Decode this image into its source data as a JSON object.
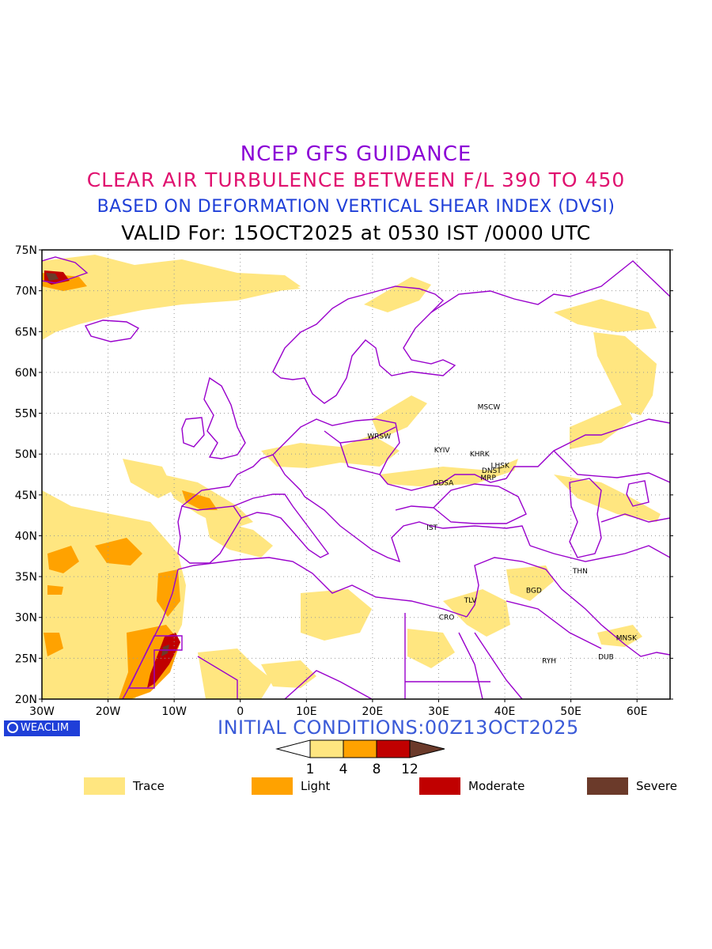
{
  "titles": {
    "line1": "NCEP GFS GUIDANCE",
    "line2": "CLEAR AIR TURBULENCE BETWEEN F/L 390 TO 450",
    "line3": "BASED ON DEFORMATION VERTICAL SHEAR INDEX (DVSI)",
    "line4": "VALID For: 15OCT2025 at 0530 IST /0000 UTC"
  },
  "axes": {
    "lat_labels": [
      "75N",
      "70N",
      "65N",
      "60N",
      "55N",
      "50N",
      "45N",
      "40N",
      "35N",
      "30N",
      "25N",
      "20N"
    ],
    "lon_labels": [
      "30W",
      "20W",
      "10W",
      "0",
      "10E",
      "20E",
      "30E",
      "40E",
      "50E",
      "60E"
    ],
    "lat_range": [
      20,
      75
    ],
    "lon_range": [
      -30,
      65
    ],
    "grid": "dotted"
  },
  "cities": [
    {
      "code": "MSCW",
      "lon": 37.6,
      "lat": 55.8
    },
    {
      "code": "WRSW",
      "lon": 21.0,
      "lat": 52.2
    },
    {
      "code": "KYIV",
      "lon": 30.5,
      "lat": 50.5
    },
    {
      "code": "KHRK",
      "lon": 36.2,
      "lat": 50.0
    },
    {
      "code": "LHSK",
      "lon": 39.3,
      "lat": 48.6
    },
    {
      "code": "DNST",
      "lon": 38.0,
      "lat": 48.0
    },
    {
      "code": "MRP",
      "lon": 37.5,
      "lat": 47.1
    },
    {
      "code": "ODSA",
      "lon": 30.7,
      "lat": 46.5
    },
    {
      "code": "IST",
      "lon": 29.0,
      "lat": 41.0
    },
    {
      "code": "THN",
      "lon": 51.4,
      "lat": 35.7
    },
    {
      "code": "BGD",
      "lon": 44.4,
      "lat": 33.3
    },
    {
      "code": "TLV",
      "lon": 34.8,
      "lat": 32.1
    },
    {
      "code": "CRO",
      "lon": 31.2,
      "lat": 30.0
    },
    {
      "code": "MNSK",
      "lon": 58.4,
      "lat": 27.5
    },
    {
      "code": "DUB",
      "lon": 55.3,
      "lat": 25.2
    },
    {
      "code": "RYH",
      "lon": 46.7,
      "lat": 24.7
    }
  ],
  "logo": "WEACLIM",
  "initial_conditions": "INITIAL CONDITIONS:00Z13OCT2025",
  "colorbar": {
    "ticks": [
      "1",
      "4",
      "8",
      "12"
    ],
    "colors": [
      "#ffffff",
      "#ffe680",
      "#ffa200",
      "#c00000",
      "#6b3a2a"
    ]
  },
  "legend": [
    {
      "label": "Trace",
      "color": "#ffe680"
    },
    {
      "label": "Light",
      "color": "#ffa200"
    },
    {
      "label": "Moderate",
      "color": "#c00000"
    },
    {
      "label": "Severe",
      "color": "#6b3a2a"
    }
  ],
  "colors": {
    "coastline": "#9900cc",
    "trace": "#ffe680",
    "light": "#ffa200",
    "moderate": "#c00000",
    "severe": "#6b3a2a"
  }
}
